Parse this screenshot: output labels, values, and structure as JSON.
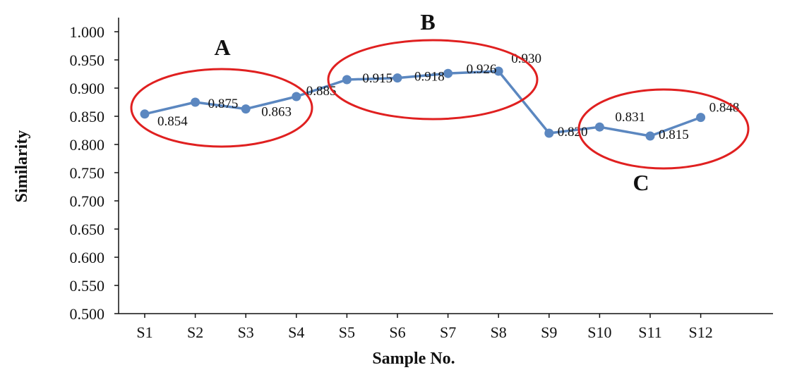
{
  "chart_data": {
    "type": "line",
    "title": "",
    "xlabel": "Sample No.",
    "ylabel": "Similarity",
    "ylim": [
      0.5,
      1.0
    ],
    "y_ticks": [
      "0.500",
      "0.550",
      "0.600",
      "0.650",
      "0.700",
      "0.750",
      "0.800",
      "0.850",
      "0.900",
      "0.950",
      "1.000"
    ],
    "categories": [
      "S1",
      "S2",
      "S3",
      "S4",
      "S5",
      "S6",
      "S7",
      "S8",
      "S9",
      "S10",
      "S11",
      "S12"
    ],
    "series": [
      {
        "values": [
          0.854,
          0.875,
          0.863,
          0.885,
          0.915,
          0.918,
          0.926,
          0.93,
          0.82,
          0.831,
          0.815,
          0.848
        ],
        "labels": [
          "0.854",
          "0.875",
          "0.863",
          "0.885",
          "0.915",
          "0.918",
          "0.926",
          "0.930",
          "0.820",
          "0.831",
          "0.815",
          "0.848"
        ],
        "color": "#5b87c0"
      }
    ],
    "annotations": [
      {
        "label": "A",
        "type": "ellipse",
        "color": "#e02020"
      },
      {
        "label": "B",
        "type": "ellipse",
        "color": "#e02020"
      },
      {
        "label": "C",
        "type": "ellipse",
        "color": "#e02020"
      }
    ],
    "grid": false,
    "legend": "none"
  }
}
